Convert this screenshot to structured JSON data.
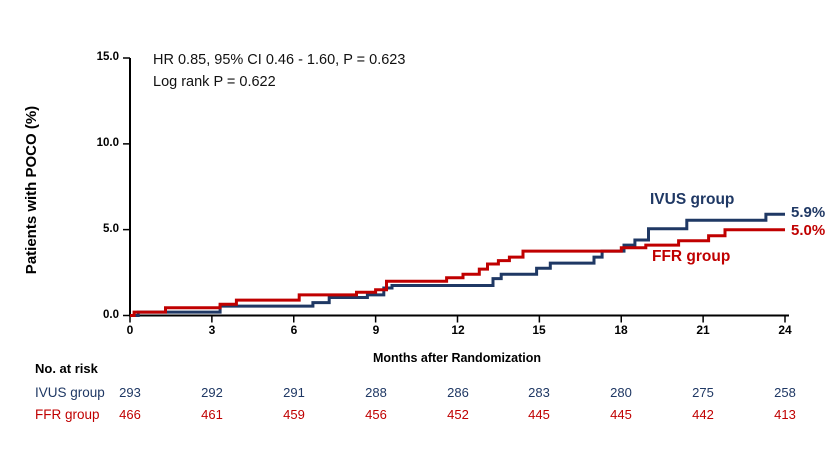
{
  "chart_data": {
    "type": "line",
    "subtype": "kaplan-meier-step",
    "title": "",
    "xlabel": "Months after Randomization",
    "ylabel": "Patients with POCO (%)",
    "xlim": [
      0,
      24
    ],
    "ylim": [
      0,
      15
    ],
    "x_ticks": [
      0,
      3,
      6,
      9,
      12,
      15,
      18,
      21,
      24
    ],
    "y_ticks": [
      0,
      5,
      10,
      15
    ],
    "y_tick_labels": [
      "0.0",
      "5.0",
      "10.0",
      "15.0"
    ],
    "grid": false,
    "legend_position": "inline-right",
    "annotations": [
      "HR 0.85, 95% CI 0.46 - 1.60, P = 0.623",
      "Log rank P = 0.622"
    ],
    "series": [
      {
        "name": "IVUS group",
        "color": "#1F3864",
        "end_label": "5.9%",
        "final_value_pct": 5.9,
        "points": [
          [
            0,
            0
          ],
          [
            0.3,
            0.2
          ],
          [
            3.3,
            0.55
          ],
          [
            6.7,
            0.75
          ],
          [
            7.3,
            1.05
          ],
          [
            8.7,
            1.2
          ],
          [
            9.3,
            1.6
          ],
          [
            9.6,
            1.75
          ],
          [
            13.3,
            2.15
          ],
          [
            13.6,
            2.4
          ],
          [
            14.9,
            2.75
          ],
          [
            15.4,
            3.05
          ],
          [
            17.0,
            3.4
          ],
          [
            17.3,
            3.75
          ],
          [
            18.1,
            4.1
          ],
          [
            18.5,
            4.4
          ],
          [
            19.0,
            5.05
          ],
          [
            20.4,
            5.55
          ],
          [
            23.3,
            5.9
          ],
          [
            24,
            5.9
          ]
        ]
      },
      {
        "name": "FFR group",
        "color": "#C00000",
        "end_label": "5.0%",
        "final_value_pct": 5.0,
        "points": [
          [
            0,
            0
          ],
          [
            0.15,
            0.2
          ],
          [
            1.3,
            0.45
          ],
          [
            3.3,
            0.65
          ],
          [
            3.9,
            0.9
          ],
          [
            6.2,
            1.2
          ],
          [
            8.3,
            1.35
          ],
          [
            9.0,
            1.5
          ],
          [
            9.4,
            2.0
          ],
          [
            11.6,
            2.2
          ],
          [
            12.2,
            2.4
          ],
          [
            12.8,
            2.7
          ],
          [
            13.1,
            3.0
          ],
          [
            13.5,
            3.2
          ],
          [
            13.9,
            3.4
          ],
          [
            14.4,
            3.75
          ],
          [
            18.0,
            3.95
          ],
          [
            18.9,
            4.1
          ],
          [
            20.1,
            4.35
          ],
          [
            21.2,
            4.65
          ],
          [
            21.8,
            5.0
          ],
          [
            24,
            5.0
          ]
        ]
      }
    ]
  },
  "at_risk": {
    "title": "No. at risk",
    "columns": [
      "0",
      "3",
      "6",
      "9",
      "12",
      "15",
      "18",
      "21",
      "24"
    ],
    "rows": [
      {
        "label": "IVUS group",
        "color": "#1F3864",
        "values": [
          "293",
          "292",
          "291",
          "288",
          "286",
          "283",
          "280",
          "275",
          "258"
        ]
      },
      {
        "label": "FFR group",
        "color": "#C00000",
        "values": [
          "466",
          "461",
          "459",
          "456",
          "452",
          "445",
          "445",
          "442",
          "413"
        ]
      }
    ]
  },
  "colors": {
    "ivus": "#1F3864",
    "ffr": "#C00000",
    "axis": "#000000",
    "background": "#FFFFFF"
  }
}
